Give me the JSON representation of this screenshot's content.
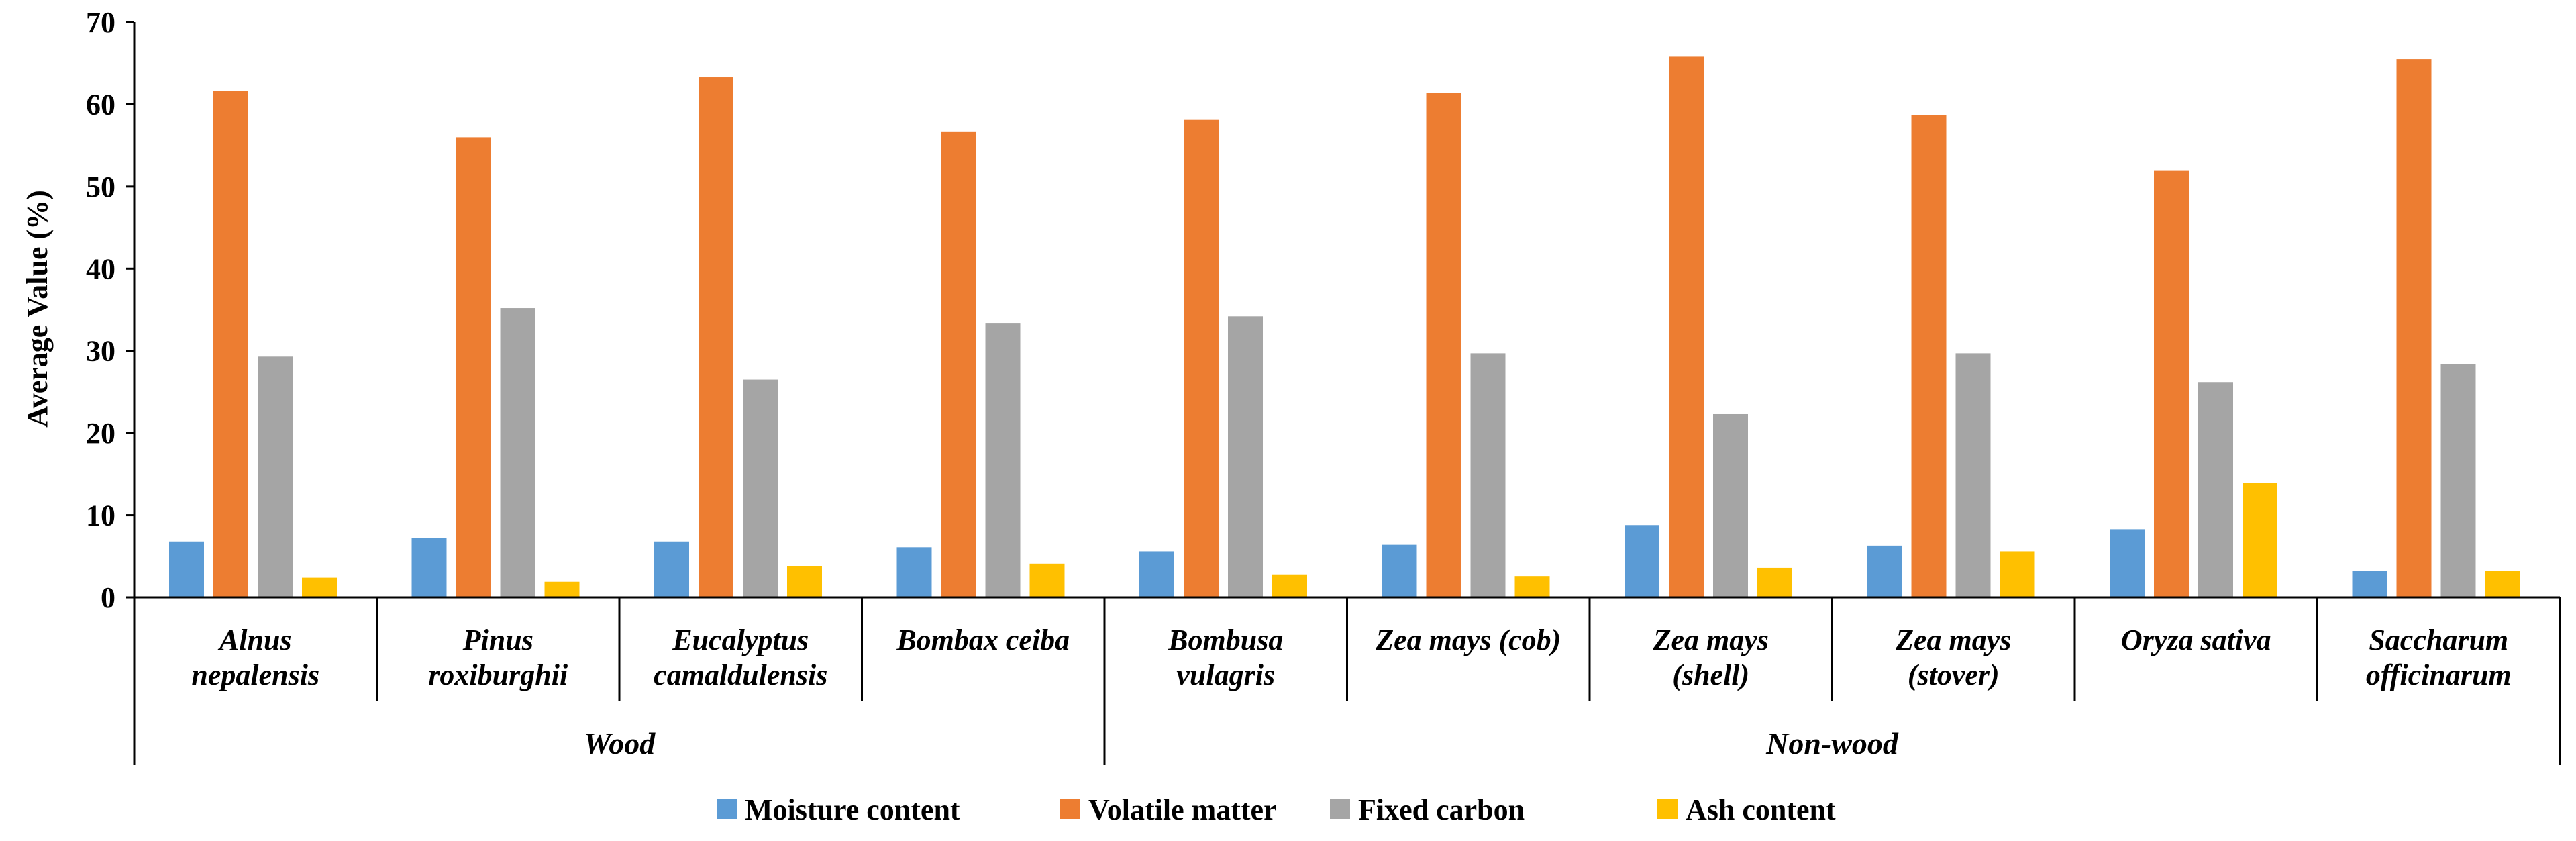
{
  "chart_data": {
    "type": "bar",
    "title": "",
    "xlabel": "",
    "ylabel": "Average Value (%)",
    "ylim": [
      0,
      70
    ],
    "yticks": [
      0,
      10,
      20,
      30,
      40,
      50,
      60,
      70
    ],
    "grid": false,
    "legend_position": "bottom",
    "categories": [
      [
        "Alnus",
        "nepalensis"
      ],
      [
        "Pinus",
        "roxiburghii"
      ],
      [
        "Eucalyptus",
        "camaldulensis"
      ],
      [
        "Bombax ceiba"
      ],
      [
        "Bombusa",
        "vulagris"
      ],
      [
        "Zea mays (cob)"
      ],
      [
        "Zea mays",
        "(shell)"
      ],
      [
        "Zea mays",
        "(stover)"
      ],
      [
        "Oryza sativa"
      ],
      [
        "Saccharum",
        "officinarum"
      ]
    ],
    "groups": [
      {
        "label": "Wood",
        "start": 0,
        "end": 3
      },
      {
        "label": "Non-wood",
        "start": 4,
        "end": 9
      }
    ],
    "series": [
      {
        "name": "Moisture content",
        "color": "#5B9BD5",
        "values": [
          6.8,
          7.2,
          6.8,
          6.1,
          5.6,
          6.4,
          8.8,
          6.3,
          8.3,
          3.2
        ]
      },
      {
        "name": "Volatile matter",
        "color": "#ED7D31",
        "values": [
          61.6,
          56.0,
          63.3,
          56.7,
          58.1,
          61.4,
          65.8,
          58.7,
          51.9,
          65.5
        ]
      },
      {
        "name": "Fixed carbon",
        "color": "#A5A5A5",
        "values": [
          29.3,
          35.2,
          26.5,
          33.4,
          34.2,
          29.7,
          22.3,
          29.7,
          26.2,
          28.4
        ]
      },
      {
        "name": "Ash content",
        "color": "#FFC000",
        "values": [
          2.4,
          1.9,
          3.8,
          4.1,
          2.8,
          2.6,
          3.6,
          5.6,
          13.9,
          3.2
        ]
      }
    ]
  }
}
